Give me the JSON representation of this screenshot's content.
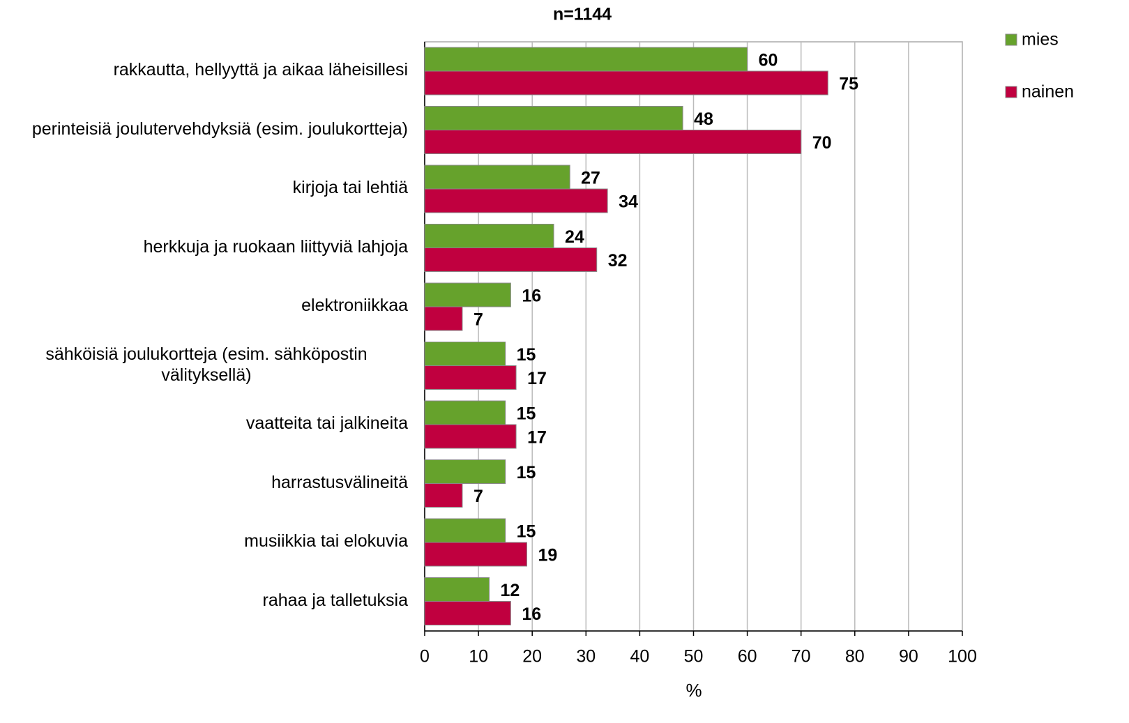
{
  "chart_data": {
    "type": "hbar",
    "title": "n=1144",
    "x_label": "%",
    "categories": [
      "rakkautta, hellyyttä ja aikaa läheisillesi",
      "perinteisiä joulutervehdyksiä (esim. joulukortteja)",
      "kirjoja tai lehtiä",
      "herkkuja ja ruokaan liittyviä lahjoja",
      "elektroniikkaa",
      "sähköisiä joulukortteja (esim. sähköpostin välityksellä)",
      "vaatteita tai jalkineita",
      "harrastusvälineitä",
      "musiikkia tai elokuvia",
      "rahaa ja talletuksia"
    ],
    "series": [
      {
        "name": "mies",
        "color": "#66a22c",
        "values": [
          60,
          48,
          27,
          24,
          16,
          15,
          15,
          15,
          15,
          12
        ]
      },
      {
        "name": "nainen",
        "color": "#c0003f",
        "values": [
          75,
          70,
          34,
          32,
          7,
          17,
          17,
          7,
          19,
          16
        ]
      }
    ],
    "xlim": [
      0,
      100
    ],
    "xticks": [
      0,
      10,
      20,
      30,
      40,
      50,
      60,
      70,
      80,
      90,
      100
    ],
    "grid": true,
    "legend": "top-right"
  }
}
